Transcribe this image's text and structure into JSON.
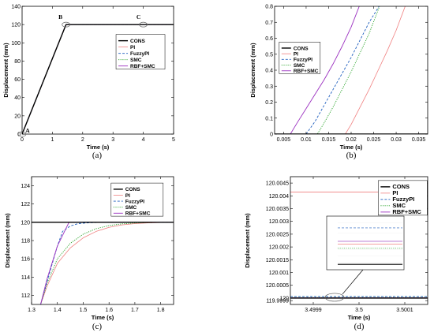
{
  "colors": {
    "CONS": "#000000",
    "PI": "#f08080",
    "FuzzyPI": "#1f5fbf",
    "SMC": "#22a022",
    "RBF+SMC": "#9b30c0"
  },
  "chart_data": [
    {
      "id": "a",
      "type": "line",
      "panel_label": "(a)",
      "xlabel": "Time (s)",
      "ylabel": "Displacement (mm)",
      "xlim": [
        0,
        5
      ],
      "ylim": [
        0,
        140
      ],
      "xticks": [
        0,
        1,
        2,
        3,
        4,
        5
      ],
      "xtick_labels": [
        "0",
        "1",
        "2",
        "3",
        "4",
        "5"
      ],
      "yticks": [
        0,
        20,
        40,
        60,
        80,
        100,
        120,
        140
      ],
      "ytick_labels": [
        "0",
        "20",
        "40",
        "60",
        "80",
        "100",
        "120",
        "140"
      ],
      "legend": [
        "CONS",
        "PI",
        "FuzzyPI",
        "SMC",
        "RBF+SMC"
      ],
      "legend_position": "right",
      "annotations": [
        {
          "text": "A",
          "x": 0.0,
          "y": 0
        },
        {
          "text": "B",
          "x": 1.45,
          "y": 120
        },
        {
          "text": "C",
          "x": 4.0,
          "y": 120
        }
      ],
      "series": [
        {
          "name": "CONS",
          "x": [
            0,
            1.45,
            5
          ],
          "y": [
            0,
            120,
            120
          ]
        },
        {
          "name": "PI",
          "x": [
            0,
            1.45,
            1.6,
            5
          ],
          "y": [
            0,
            119.5,
            120,
            120
          ]
        },
        {
          "name": "FuzzyPI",
          "x": [
            0,
            1.45,
            1.55,
            5
          ],
          "y": [
            0,
            119.8,
            120,
            120
          ]
        },
        {
          "name": "SMC",
          "x": [
            0,
            1.45,
            1.6,
            5
          ],
          "y": [
            0,
            119.6,
            120,
            120
          ]
        },
        {
          "name": "RBF+SMC",
          "x": [
            0,
            1.45,
            5
          ],
          "y": [
            0,
            120,
            120
          ]
        }
      ]
    },
    {
      "id": "b",
      "type": "line",
      "panel_label": "(b)",
      "xlabel": "Time (s)",
      "ylabel": "Displacement (mm)",
      "xlim": [
        0.003,
        0.037
      ],
      "ylim": [
        0,
        0.8
      ],
      "xticks": [
        0.005,
        0.01,
        0.015,
        0.02,
        0.025,
        0.03,
        0.035
      ],
      "xtick_labels": [
        "0.005",
        "0.01",
        "0.015",
        "0.02",
        "0.025",
        "0.03",
        "0.035"
      ],
      "yticks": [
        0,
        0.1,
        0.2,
        0.3,
        0.4,
        0.5,
        0.6,
        0.7,
        0.8
      ],
      "ytick_labels": [
        "0",
        "0.1",
        "0.2",
        "0.3",
        "0.4",
        "0.5",
        "0.6",
        "0.7",
        "0.8"
      ],
      "legend": [
        "CONS",
        "PI",
        "FuzzyPI",
        "SMC",
        "RBF+SMC"
      ],
      "legend_position": "top-left",
      "series": [
        {
          "name": "CONS",
          "x": [
            0.003,
            0.037
          ],
          "y": [
            0,
            0
          ]
        },
        {
          "name": "PI",
          "x": [
            0.003,
            0.0187,
            0.02,
            0.022,
            0.024,
            0.026,
            0.028,
            0.03,
            0.032
          ],
          "y": [
            0,
            0,
            0.06,
            0.17,
            0.28,
            0.4,
            0.52,
            0.65,
            0.8
          ]
        },
        {
          "name": "FuzzyPI",
          "x": [
            0.003,
            0.01,
            0.012,
            0.014,
            0.016,
            0.018,
            0.02,
            0.022,
            0.024,
            0.0262
          ],
          "y": [
            0,
            0,
            0.08,
            0.18,
            0.28,
            0.38,
            0.48,
            0.59,
            0.7,
            0.8
          ]
        },
        {
          "name": "SMC",
          "x": [
            0.003,
            0.0125,
            0.014,
            0.016,
            0.018,
            0.02,
            0.022,
            0.024,
            0.0263
          ],
          "y": [
            0,
            0,
            0.07,
            0.17,
            0.28,
            0.39,
            0.51,
            0.63,
            0.8
          ]
        },
        {
          "name": "RBF+SMC",
          "x": [
            0.003,
            0.0065,
            0.008,
            0.01,
            0.012,
            0.014,
            0.016,
            0.018,
            0.02,
            0.0218
          ],
          "y": [
            0,
            0,
            0.07,
            0.16,
            0.25,
            0.34,
            0.44,
            0.55,
            0.67,
            0.8
          ]
        }
      ]
    },
    {
      "id": "c",
      "type": "line",
      "panel_label": "(c)",
      "xlabel": "Time (s)",
      "ylabel": "Displacement (mm)",
      "xlim": [
        1.3,
        1.85
      ],
      "ylim": [
        111,
        125
      ],
      "xticks": [
        1.3,
        1.4,
        1.5,
        1.6,
        1.7,
        1.8
      ],
      "xtick_labels": [
        "1.3",
        "1.4",
        "1.5",
        "1.6",
        "1.7",
        "1.8"
      ],
      "yticks": [
        112,
        114,
        116,
        118,
        120,
        122,
        124
      ],
      "ytick_labels": [
        "112",
        "114",
        "116",
        "118",
        "120",
        "122",
        "124"
      ],
      "legend": [
        "CONS",
        "PI",
        "FuzzyPI",
        "SMC",
        "RBF+SMC"
      ],
      "legend_position": "top-right",
      "series": [
        {
          "name": "CONS",
          "x": [
            1.3,
            1.85
          ],
          "y": [
            120,
            120
          ]
        },
        {
          "name": "PI",
          "x": [
            1.335,
            1.36,
            1.4,
            1.45,
            1.5,
            1.55,
            1.6,
            1.65,
            1.7,
            1.75,
            1.8,
            1.85
          ],
          "y": [
            111,
            113.0,
            115.5,
            117.2,
            118.3,
            119.0,
            119.45,
            119.72,
            119.86,
            119.94,
            119.98,
            120
          ]
        },
        {
          "name": "FuzzyPI",
          "x": [
            1.335,
            1.36,
            1.4,
            1.42,
            1.45,
            1.48,
            1.52,
            1.56,
            1.6,
            1.7,
            1.85
          ],
          "y": [
            111,
            113.5,
            117.4,
            119.0,
            119.6,
            119.85,
            119.95,
            119.99,
            120,
            120,
            120
          ]
        },
        {
          "name": "SMC",
          "x": [
            1.335,
            1.36,
            1.4,
            1.45,
            1.5,
            1.55,
            1.6,
            1.65,
            1.7,
            1.75,
            1.8,
            1.85
          ],
          "y": [
            111,
            113.3,
            116.0,
            117.7,
            118.7,
            119.3,
            119.65,
            119.83,
            119.92,
            119.97,
            119.99,
            120
          ]
        },
        {
          "name": "RBF+SMC",
          "x": [
            1.335,
            1.36,
            1.4,
            1.445,
            1.85
          ],
          "y": [
            111,
            113.8,
            117.4,
            120,
            120
          ]
        }
      ]
    },
    {
      "id": "d",
      "type": "line",
      "panel_label": "(d)",
      "xlabel": "Time (s)",
      "ylabel": "Displacement (mm)",
      "xlim": [
        3.49985,
        3.50015
      ],
      "ylim": [
        119.99975,
        120.00475
      ],
      "xticks": [
        3.4999,
        3.5,
        3.5001
      ],
      "xtick_labels": [
        "3.4999",
        "3.5",
        "3.5001"
      ],
      "yticks": [
        119.9999,
        120,
        120.0005,
        120.001,
        120.0015,
        120.002,
        120.0025,
        120.003,
        120.0035,
        120.004,
        120.0045
      ],
      "ytick_labels": [
        "119.9999",
        "120",
        "120.0005",
        "120.001",
        "120.0015",
        "120.002",
        "120.0025",
        "120.003",
        "120.0035",
        "120.004",
        "120.0045"
      ],
      "legend": [
        "CONS",
        "PI",
        "FuzzyPI",
        "SMC",
        "RBF+SMC"
      ],
      "legend_position": "top-right",
      "series": [
        {
          "name": "CONS",
          "x": [
            3.49985,
            3.50015
          ],
          "y": [
            120,
            120
          ]
        },
        {
          "name": "PI",
          "x": [
            3.49985,
            3.50015
          ],
          "y": [
            120.00415,
            120.00415
          ]
        },
        {
          "name": "FuzzyPI",
          "x": [
            3.49985,
            3.50015
          ],
          "y": [
            120.00006,
            120.00006
          ]
        },
        {
          "name": "SMC",
          "x": [
            3.49985,
            3.50015
          ],
          "y": [
            120.00002,
            120.00002
          ]
        },
        {
          "name": "RBF+SMC",
          "x": [
            3.49985,
            3.50015
          ],
          "y": [
            120.00001,
            120.00001
          ]
        }
      ]
    }
  ]
}
